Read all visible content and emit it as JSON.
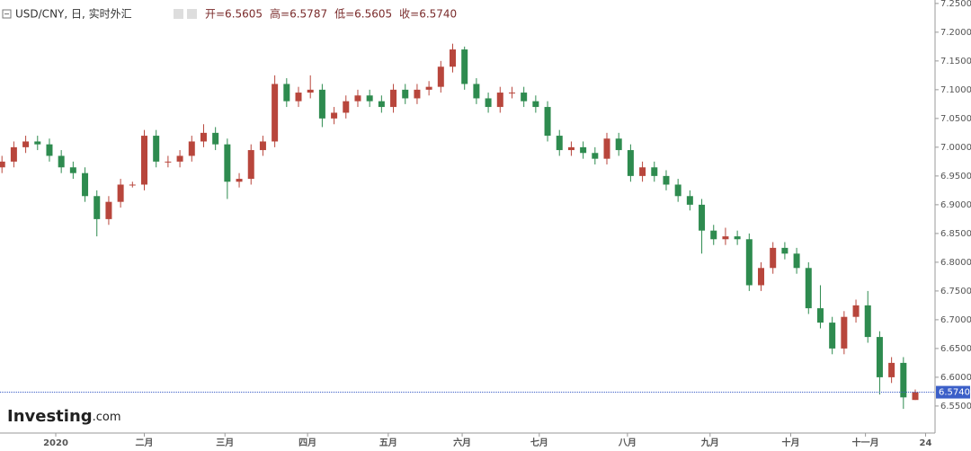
{
  "chart_data": {
    "type": "candlestick",
    "title": "USD/CNY, 日, 实时外汇",
    "stats": [
      "开=6.5605",
      "高=6.5787",
      "低=6.5605",
      "收=6.5740"
    ],
    "brand": "Investing",
    "brand_suffix": ".com",
    "up_color": "#b8463c",
    "down_color": "#2e8b4f",
    "x": [
      0,
      3,
      6,
      9,
      12,
      15,
      18,
      21,
      24,
      27,
      30,
      33,
      36,
      39,
      42,
      45,
      48,
      51,
      54,
      57,
      60,
      63,
      66,
      69,
      72,
      75,
      78,
      81,
      84,
      87,
      90,
      93,
      96,
      99,
      102,
      105,
      108,
      111,
      114,
      117,
      120,
      123,
      126,
      129,
      132,
      135,
      138,
      141,
      144,
      147,
      150,
      153,
      156,
      159,
      162,
      165,
      168,
      171,
      174,
      177,
      180,
      183,
      186,
      189,
      192,
      195,
      198,
      201,
      204,
      207,
      210,
      213,
      216,
      219,
      222,
      225,
      228,
      231
    ],
    "open": [
      6.965,
      6.975,
      7.0,
      7.01,
      7.005,
      6.985,
      6.965,
      6.955,
      6.915,
      6.875,
      6.905,
      6.935,
      6.935,
      7.02,
      6.975,
      6.975,
      6.985,
      7.01,
      7.025,
      7.005,
      6.94,
      6.945,
      6.995,
      7.01,
      7.11,
      7.08,
      7.095,
      7.1,
      7.05,
      7.06,
      7.08,
      7.09,
      7.08,
      7.07,
      7.1,
      7.085,
      7.1,
      7.105,
      7.14,
      7.17,
      7.11,
      7.085,
      7.07,
      7.095,
      7.095,
      7.08,
      7.07,
      7.02,
      6.995,
      7.0,
      6.99,
      6.98,
      7.015,
      6.995,
      6.95,
      6.965,
      6.95,
      6.935,
      6.915,
      6.9,
      6.855,
      6.84,
      6.845,
      6.84,
      6.76,
      6.79,
      6.825,
      6.815,
      6.79,
      6.72,
      6.695,
      6.65,
      6.705,
      6.725,
      6.67,
      6.6,
      6.625,
      6.5605
    ],
    "high": [
      6.985,
      7.01,
      7.02,
      7.02,
      7.015,
      6.995,
      6.975,
      6.965,
      6.925,
      6.915,
      6.945,
      6.94,
      7.03,
      7.03,
      6.985,
      6.995,
      7.02,
      7.04,
      7.035,
      7.015,
      6.955,
      7.005,
      7.02,
      7.125,
      7.12,
      7.105,
      7.125,
      7.11,
      7.07,
      7.09,
      7.1,
      7.1,
      7.09,
      7.11,
      7.11,
      7.11,
      7.115,
      7.15,
      7.18,
      7.175,
      7.12,
      7.095,
      7.105,
      7.105,
      7.105,
      7.09,
      7.08,
      7.03,
      7.01,
      7.01,
      7.0,
      7.025,
      7.025,
      7.005,
      6.975,
      6.975,
      6.96,
      6.945,
      6.925,
      6.91,
      6.865,
      6.86,
      6.855,
      6.85,
      6.8,
      6.835,
      6.835,
      6.825,
      6.8,
      6.76,
      6.705,
      6.715,
      6.735,
      6.75,
      6.68,
      6.635,
      6.635,
      6.5787
    ],
    "low": [
      6.955,
      6.965,
      6.99,
      6.995,
      6.975,
      6.955,
      6.945,
      6.905,
      6.845,
      6.865,
      6.895,
      6.93,
      6.925,
      6.965,
      6.965,
      6.965,
      6.975,
      7.0,
      6.995,
      6.91,
      6.93,
      6.935,
      6.985,
      7.0,
      7.07,
      7.07,
      7.085,
      7.035,
      7.04,
      7.05,
      7.07,
      7.07,
      7.06,
      7.06,
      7.075,
      7.075,
      7.09,
      7.095,
      7.13,
      7.1,
      7.075,
      7.06,
      7.06,
      7.085,
      7.07,
      7.06,
      7.01,
      6.985,
      6.985,
      6.98,
      6.97,
      6.97,
      6.985,
      6.94,
      6.94,
      6.94,
      6.925,
      6.905,
      6.89,
      6.815,
      6.83,
      6.83,
      6.83,
      6.75,
      6.75,
      6.78,
      6.805,
      6.78,
      6.71,
      6.685,
      6.64,
      6.64,
      6.695,
      6.66,
      6.57,
      6.59,
      6.545,
      6.5605
    ],
    "close": [
      6.975,
      7.0,
      7.01,
      7.005,
      6.985,
      6.965,
      6.955,
      6.915,
      6.875,
      6.905,
      6.935,
      6.935,
      7.02,
      6.975,
      6.975,
      6.985,
      7.01,
      7.025,
      7.005,
      6.94,
      6.945,
      6.995,
      7.01,
      7.11,
      7.08,
      7.095,
      7.1,
      7.05,
      7.06,
      7.08,
      7.09,
      7.08,
      7.07,
      7.1,
      7.085,
      7.1,
      7.105,
      7.14,
      7.17,
      7.11,
      7.085,
      7.07,
      7.095,
      7.095,
      7.08,
      7.07,
      7.02,
      6.995,
      7.0,
      6.99,
      6.98,
      7.015,
      6.995,
      6.95,
      6.965,
      6.95,
      6.935,
      6.915,
      6.9,
      6.855,
      6.84,
      6.845,
      6.84,
      6.76,
      6.79,
      6.825,
      6.815,
      6.79,
      6.72,
      6.695,
      6.65,
      6.705,
      6.725,
      6.67,
      6.6,
      6.625,
      6.565,
      6.574
    ],
    "last_price": {
      "value": 6.574,
      "label": "6.5740"
    },
    "xlim": [
      -0.5,
      236
    ],
    "xticks": [
      {
        "value": 13.6,
        "label": "2020"
      },
      {
        "value": 36,
        "label": "二月"
      },
      {
        "value": 56.4,
        "label": "三月"
      },
      {
        "value": 77.3,
        "label": "四月"
      },
      {
        "value": 97.7,
        "label": "五月"
      },
      {
        "value": 116.4,
        "label": "六月"
      },
      {
        "value": 135.9,
        "label": "七月"
      },
      {
        "value": 158.2,
        "label": "八月"
      },
      {
        "value": 179.1,
        "label": "九月"
      },
      {
        "value": 199.5,
        "label": "十月"
      },
      {
        "value": 218.4,
        "label": "十一月"
      },
      {
        "value": 233.6,
        "label": "24"
      }
    ],
    "ylim": [
      6.503,
      7.256
    ],
    "yticks": [
      {
        "value": 6.55,
        "label": "6.5500"
      },
      {
        "value": 6.6,
        "label": "6.6000"
      },
      {
        "value": 6.65,
        "label": "6.6500"
      },
      {
        "value": 6.7,
        "label": "6.7000"
      },
      {
        "value": 6.75,
        "label": "6.7500"
      },
      {
        "value": 6.8,
        "label": "6.8000"
      },
      {
        "value": 6.85,
        "label": "6.8500"
      },
      {
        "value": 6.9,
        "label": "6.9000"
      },
      {
        "value": 6.95,
        "label": "6.9500"
      },
      {
        "value": 7.0,
        "label": "7.0000"
      },
      {
        "value": 7.05,
        "label": "7.0500"
      },
      {
        "value": 7.1,
        "label": "7.1000"
      },
      {
        "value": 7.15,
        "label": "7.1500"
      },
      {
        "value": 7.2,
        "label": "7.2000"
      },
      {
        "value": 7.25,
        "label": "7.2500"
      }
    ]
  }
}
